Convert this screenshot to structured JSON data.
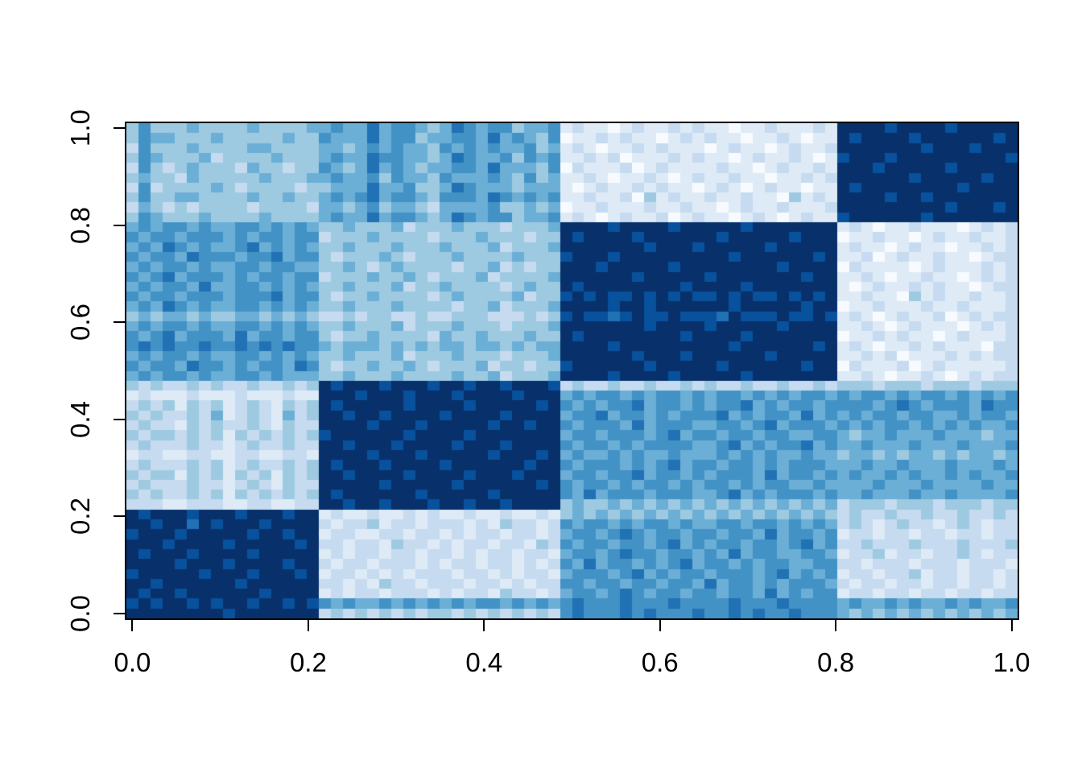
{
  "figure": {
    "background": "#ffffff",
    "box_color": "#000000",
    "tick_color": "#000000",
    "label_color": "#000000"
  },
  "chart_data": {
    "type": "heatmap",
    "title": "",
    "xlabel": "",
    "ylabel": "",
    "xlim": [
      0,
      1
    ],
    "ylim": [
      0,
      1
    ],
    "grid": false,
    "legend": "none",
    "x_ticks": [
      "0.0",
      "0.2",
      "0.4",
      "0.6",
      "0.8",
      "1.0"
    ],
    "x_tick_values": [
      0,
      0.2,
      0.4,
      0.6,
      0.8,
      1.0
    ],
    "y_ticks": [
      "0.0",
      "0.2",
      "0.4",
      "0.6",
      "0.8",
      "1.0"
    ],
    "y_tick_values": [
      0,
      0.2,
      0.4,
      0.6,
      0.8,
      1.0
    ],
    "palette_name": "Blues (9-class, light to dark)",
    "palette": [
      "#f7fbff",
      "#deebf7",
      "#c6dbef",
      "#9ecae1",
      "#6baed6",
      "#4292c6",
      "#2171b5",
      "#08519c",
      "#08306b"
    ],
    "n_cols": 74,
    "n_rows": 50,
    "cluster_boundaries_x": [
      0.22,
      0.49,
      0.8
    ],
    "cluster_boundaries_y": [
      0.22,
      0.49,
      0.8
    ],
    "block_structure_note": "4 dark diagonal blocks (high values) at x/y 0-0.22, 0.22-0.49, 0.49-0.80, 0.80-1.0; off-diagonal blocks light to mid blue",
    "matrix_encoding": "rows listed top to bottom; each row is segments of palette indices 0-8 joined left to right",
    "matrix": [
      [
        "3533343333433334",
        "4544645543",
        "4654553445",
        "121101211212",
        "11011211121",
        "888878888788888"
      ],
      [
        "3544333433333433",
        "5444645534",
        "4554645435",
        "011212110121",
        "21101121011",
        "878888788888878"
      ],
      [
        "2533343333443333",
        "4434545443",
        "5454544534",
        "121011212111",
        "01211012112",
        "888888878887888"
      ],
      [
        "3543334233334333",
        "4544655443",
        "4654453545",
        "112120111212",
        "11012112101",
        "788878888888887"
      ],
      [
        "2532343332433233",
        "5434645434",
        "4554644435",
        "021112012111",
        "12110121121",
        "888788888788888"
      ],
      [
        "3433243333343334",
        "4544535443",
        "5444543534",
        "112101121012",
        "11211011212",
        "888888788888788"
      ],
      [
        "2523333432333323",
        "3444644533",
        "4654443444",
        "101211212110",
        "12101211011",
        "878888888878888"
      ],
      [
        "3533443333433433",
        "4545645543",
        "5554654545",
        "112112031211",
        "21121103121",
        "888878878888888"
      ],
      [
        "2432323333233332",
        "4434534432",
        "4444533434",
        "011211121121",
        "10121121112",
        "888888888788878"
      ],
      [
        "3543334333343333",
        "4544645543",
        "4654553445",
        "121012112012",
        "11012101211",
        "788888878888888"
      ],
      [
        "4545545445545454",
        "3343334233",
        "3433323334",
        "888878888788",
        "88878888888",
        "121011211101212"
      ],
      [
        "5455455545455455",
        "2333433332",
        "3334333233",
        "878888788888",
        "87888887888",
        "011211012112112"
      ],
      [
        "4546545445645454",
        "3343334333",
        "4333423334",
        "888888878887",
        "88888788888",
        "121101211011212"
      ],
      [
        "5455465554556455",
        "3233343233",
        "3433334333",
        "788878888888",
        "88788888878",
        "112012112110122"
      ],
      [
        "4545545445545544",
        "3343234333",
        "3233423233",
        "888788888788",
        "88888878888",
        "021111012111212"
      ],
      [
        "5456455545455455",
        "2333433432",
        "3334233334",
        "888888788888",
        "78888888788",
        "112101121101212"
      ],
      [
        "4545546445545454",
        "3343334233",
        "4333323433",
        "878888888878",
        "88878888888",
        "101211212110122"
      ],
      [
        "5455455545556455",
        "3233433332",
        "3433334233",
        "787877878787",
        "78787787878",
        "112110312112112"
      ],
      [
        "4546545445545454",
        "3343334333",
        "3233423334",
        "888878878888",
        "88788888788",
        "011211121121112"
      ],
      [
        "3434434334434343",
        "2232332232",
        "2333222323",
        "787767877877",
        "76877787787",
        "121012112012122"
      ],
      [
        "4545545445545454",
        "3343334233",
        "3433323334",
        "888888878888",
        "78888878888",
        "112101211101212"
      ],
      [
        "5456455546455455",
        "3233433332",
        "4334333433",
        "878888888878",
        "88878888888",
        "011212110121112"
      ],
      [
        "5656556556565655",
        "4344434343",
        "4434434344",
        "888878888888",
        "88788888878",
        "121011212111022"
      ],
      [
        "4545545445545454",
        "3343334233",
        "3433323334",
        "888888788878",
        "88888788888",
        "112120111212122"
      ],
      [
        "5455465545455465",
        "3233433432",
        "3334233233",
        "788888878888",
        "87888888788",
        "021112012111112"
      ],
      [
        "4545545445545444",
        "3343334333",
        "3433423334",
        "888878888788",
        "88878888888",
        "112101121012122"
      ],
      [
        "3232232322322323",
        "8788878887",
        "8878878887",
        "232232232232",
        "32232232232",
        "333233323332333"
      ],
      [
        "1211121112111211",
        "8887888788",
        "8788887888",
        "454554545545",
        "45545454554",
        "545545455454545"
      ],
      [
        "2323132312321323",
        "8788888788",
        "8878888878",
        "545455645545",
        "45564545545",
        "555456545554655"
      ],
      [
        "3232232412321423",
        "8878878888",
        "7888878888",
        "455645545455",
        "56454554645",
        "454554554454554"
      ],
      [
        "2322132322321322",
        "8888788878",
        "8888788788",
        "545554645554",
        "45545645554",
        "545455454545445"
      ],
      [
        "3233232313232323",
        "7888888788",
        "8878888888",
        "455455545645",
        "54554554455",
        "434454445444344"
      ],
      [
        "2322232212322322",
        "8878887888",
        "8788878888",
        "545545455554",
        "45645455645",
        "445444544454445"
      ],
      [
        "1221122112211221",
        "8888788878",
        "8888788878",
        "454454544544",
        "45454544544",
        "344343443434434"
      ],
      [
        "2322232312322323",
        "8788878888",
        "7888888788",
        "545554545645",
        "54554545554",
        "445445444544454"
      ],
      [
        "3233132313231323",
        "8878888788",
        "8878887888",
        "455455645545",
        "45554645545",
        "454454544545445"
      ],
      [
        "2322232212321322",
        "8888878888",
        "8788888878",
        "545545455454",
        "55454554454",
        "444544454444544"
      ],
      [
        "3232232313232323",
        "8788888878",
        "8888788888",
        "546455545554",
        "45645455545",
        "445444544544445"
      ],
      [
        "2221122211221122",
        "8878878887",
        "8878878888",
        "343343434343",
        "43434343434",
        "233323332333233"
      ],
      [
        "8788878887888788",
        "1211211212",
        "1121121121",
        "343434343434",
        "34343434343",
        "232232232232232"
      ],
      [
        "8878868788878888",
        "2122312212",
        "2212132212",
        "545545455454",
        "45545545454",
        "232123221232122"
      ],
      [
        "7888788888788788",
        "1221122122",
        "1212212212",
        "455456545545",
        "54554645545",
        "122122122122122"
      ],
      [
        "8887888878888878",
        "2212213221",
        "2122122132",
        "545545545645",
        "45545545645",
        "223222322232223"
      ],
      [
        "8788878888788888",
        "1212212212",
        "2121221221",
        "455456554554",
        "54645544554",
        "122312212232122"
      ],
      [
        "8888788878888788",
        "2122122212",
        "1221221212",
        "546455454564",
        "55454554455",
        "221222122212221"
      ],
      [
        "7888887888788878",
        "1221212122",
        "2122121221",
        "455545645455",
        "45554564545",
        "122122312212212"
      ],
      [
        "8878888887888888",
        "2212132212",
        "2212212122",
        "554554554554",
        "64554545554",
        "212212212212212"
      ],
      [
        "8788788888878888",
        "1212212221",
        "2122132212",
        "455456545545",
        "54554645455",
        "122122122122122"
      ],
      [
        "7878878788788787",
        "5454454545",
        "4545545454",
        "565556555655",
        "55655565555",
        "454454544545445"
      ],
      [
        "8888888878888888",
        "2323232323",
        "3232323232",
        "565556565556",
        "55656556555",
        "434343434343434"
      ]
    ]
  }
}
